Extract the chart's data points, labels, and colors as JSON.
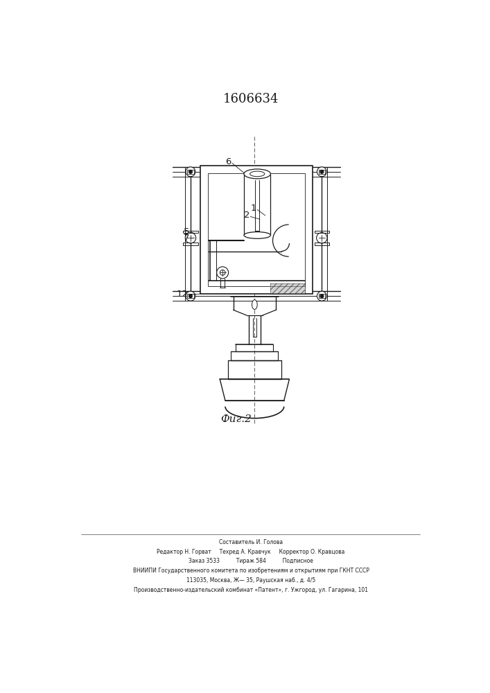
{
  "title": "1606634",
  "fig_label": "Фиг.2",
  "background_color": "#ffffff",
  "line_color": "#1a1a1a",
  "footer_lines": [
    "Составитель И. Голова",
    "Редактор Н. Горват     Техред А. Кравчук     Корректор О. Кравцова",
    "Заказ 3533          Тираж 584          Подписное",
    "ВНИИПИ Государственного комитета по изобретениям и открытиям при ГКНТ СССР",
    "113035, Москва, Ж— 35, Раушская наб., д. 4/5",
    "Производственно-издательский комбинат «Патент», г. Ужгород, ул. Гагарина, 101"
  ]
}
